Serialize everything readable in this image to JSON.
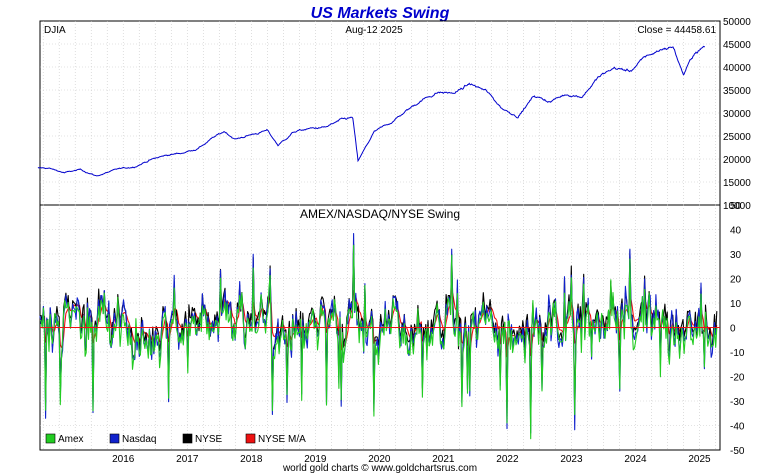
{
  "chart_data": [
    {
      "type": "line",
      "title": "US Markets Swing",
      "left_label": "DJIA",
      "date_label": "Aug-12  2025",
      "close_label": "Close = 44458.61",
      "ylim": [
        10000,
        50000
      ],
      "yticks": [
        10000,
        15000,
        20000,
        25000,
        30000,
        35000,
        40000,
        45000,
        50000
      ],
      "grid": true,
      "series": [
        {
          "color": "#0000cc",
          "x": [
            "2015-03",
            "2015-05",
            "2015-08",
            "2015-11",
            "2016-02",
            "2016-06",
            "2016-09",
            "2016-12",
            "2017-03",
            "2017-06",
            "2017-09",
            "2017-12",
            "2018-02",
            "2018-04",
            "2018-07",
            "2018-10",
            "2018-12",
            "2019-03",
            "2019-06",
            "2019-09",
            "2019-12",
            "2020-02",
            "2020-03",
            "2020-06",
            "2020-09",
            "2020-12",
            "2021-03",
            "2021-06",
            "2021-09",
            "2021-12",
            "2022-03",
            "2022-06",
            "2022-09",
            "2022-12",
            "2023-03",
            "2023-06",
            "2023-09",
            "2023-12",
            "2024-03",
            "2024-06",
            "2024-09",
            "2024-12",
            "2025-02",
            "2025-04",
            "2025-06",
            "2025-08"
          ],
          "y": [
            18000,
            18000,
            17000,
            17700,
            16300,
            17800,
            18300,
            19800,
            20800,
            21300,
            22300,
            24700,
            26000,
            24300,
            25300,
            26200,
            23000,
            25900,
            26600,
            26900,
            28500,
            29000,
            19500,
            25800,
            27800,
            30400,
            32900,
            34500,
            34300,
            36300,
            34800,
            31000,
            29300,
            33700,
            32500,
            34100,
            33600,
            37700,
            39800,
            39100,
            42300,
            43900,
            44500,
            38300,
            43000,
            44458
          ]
        }
      ]
    },
    {
      "type": "line",
      "title": "AMEX/NASDAQ/NYSE Swing",
      "ylim": [
        -50,
        50
      ],
      "yticks": [
        -50,
        -40,
        -30,
        -20,
        -10,
        0,
        10,
        20,
        30,
        40,
        50
      ],
      "xticks": [
        "2016",
        "2017",
        "2018",
        "2019",
        "2020",
        "2021",
        "2022",
        "2023",
        "2024",
        "2025"
      ],
      "grid": true,
      "legend": "bottom-left",
      "series": [
        {
          "name": "Amex",
          "color": "#22cc22"
        },
        {
          "name": "Nasdaq",
          "color": "#1122cc"
        },
        {
          "name": "NYSE",
          "color": "#000000"
        },
        {
          "name": "NYSE M/A",
          "color": "#ee1111"
        }
      ]
    }
  ],
  "footer": "world gold charts © www.goldchartsrus.com"
}
